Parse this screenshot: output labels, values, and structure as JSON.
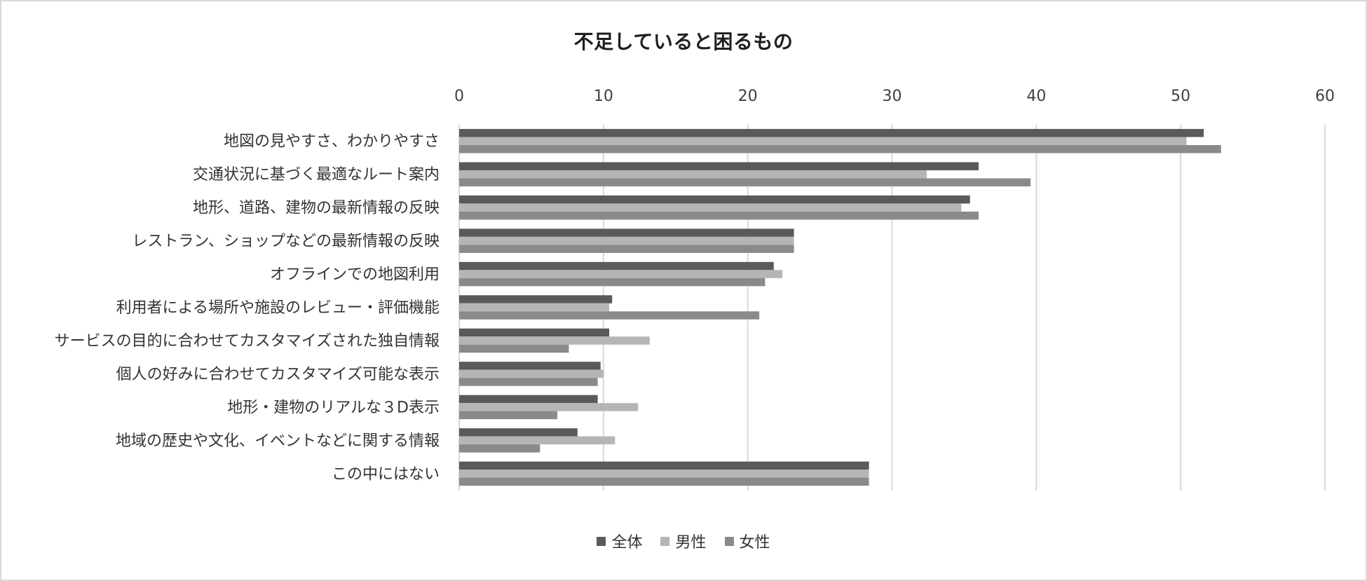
{
  "chart_data": {
    "type": "bar",
    "orientation": "horizontal",
    "title": "不足していると困るもの",
    "xlabel": "",
    "ylabel": "",
    "xlim": [
      0,
      60
    ],
    "x_ticks": [
      "0",
      "10",
      "20",
      "30",
      "40",
      "50",
      "60"
    ],
    "x_axis_position": "top",
    "grid": true,
    "legend_position": "bottom",
    "categories": [
      "地図の見やすさ、わかりやすさ",
      "交通状況に基づく最適なルート案内",
      "地形、道路、建物の最新情報の反映",
      "レストラン、ショップなどの最新情報の反映",
      "オフラインでの地図利用",
      "利用者による場所や施設のレビュー・評価機能",
      "サービスの目的に合わせてカスタマイズされた独自情報",
      "個人の好みに合わせてカスタマイズ可能な表示",
      "地形・建物のリアルな３D表示",
      "地域の歴史や文化、イベントなどに関する情報",
      "この中にはない"
    ],
    "series": [
      {
        "name": "全体",
        "color": "#5a5a5a",
        "values": [
          51.6,
          36.0,
          35.4,
          23.2,
          21.8,
          10.6,
          10.4,
          9.8,
          9.6,
          8.2,
          28.4
        ]
      },
      {
        "name": "男性",
        "color": "#b5b5b5",
        "values": [
          50.4,
          32.4,
          34.8,
          23.2,
          22.4,
          10.4,
          13.2,
          10.0,
          12.4,
          10.8,
          28.4
        ]
      },
      {
        "name": "女性",
        "color": "#8a8a8a",
        "values": [
          52.8,
          39.6,
          36.0,
          23.2,
          21.2,
          20.8,
          7.6,
          9.6,
          6.8,
          5.6,
          28.4
        ]
      }
    ]
  }
}
